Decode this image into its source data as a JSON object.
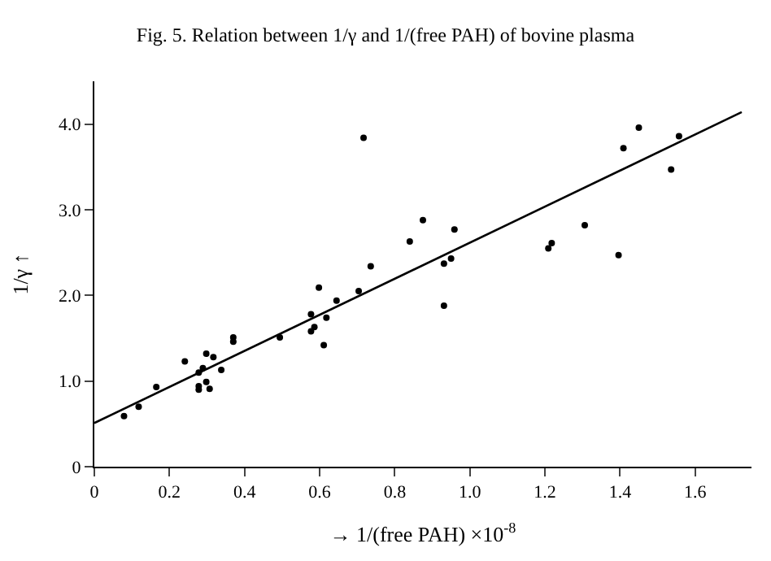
{
  "chart_data": {
    "type": "scatter",
    "title": "Fig. 5. Relation between 1/γ and 1/(free PAH) of bovine plasma",
    "xlabel": "→ 1/(free PAH) ×10$^{-8}$",
    "ylabel": "1/γ ↑",
    "xlim": [
      0,
      1.75
    ],
    "ylim": [
      0,
      4.5
    ],
    "xticks": [
      0,
      0.2,
      0.4,
      0.6,
      0.8,
      {
        "value": 1,
        "label": "1.0"
      },
      1.2,
      1.4,
      1.6
    ],
    "yticks": [
      0,
      {
        "value": 1,
        "label": "1.0"
      },
      {
        "value": 2,
        "label": "2.0"
      },
      {
        "value": 3,
        "label": "3.0"
      },
      {
        "value": 4,
        "label": "4.0"
      }
    ],
    "marker": "circle",
    "series": [
      {
        "color": "#000000",
        "x": [
          0.079,
          0.118,
          0.165,
          0.241,
          0.278,
          0.278,
          0.278,
          0.289,
          0.298,
          0.298,
          0.307,
          0.317,
          0.338,
          0.37,
          0.37,
          0.494,
          0.577,
          0.577,
          0.586,
          0.598,
          0.611,
          0.618,
          0.645,
          0.704,
          0.717,
          0.736,
          0.84,
          0.875,
          0.931,
          0.931,
          0.95,
          0.959,
          1.209,
          1.218,
          1.306,
          1.396,
          1.409,
          1.45,
          1.536,
          1.557
        ],
        "values": [
          0.59,
          0.7,
          0.93,
          1.23,
          1.1,
          0.94,
          0.9,
          1.15,
          1.32,
          0.99,
          0.91,
          1.28,
          1.13,
          1.51,
          1.46,
          1.51,
          1.78,
          1.58,
          1.63,
          2.09,
          1.42,
          1.74,
          1.94,
          2.05,
          3.84,
          2.34,
          2.63,
          2.88,
          2.37,
          1.88,
          2.43,
          2.77,
          2.55,
          2.61,
          2.82,
          2.47,
          3.72,
          3.96,
          3.47,
          3.86
        ]
      },
      {
        "type": "line",
        "color": "#000000",
        "x": [
          0,
          1.724
        ],
        "values": [
          0.51,
          4.14
        ],
        "line_style": "solid",
        "marker": "none"
      }
    ]
  }
}
